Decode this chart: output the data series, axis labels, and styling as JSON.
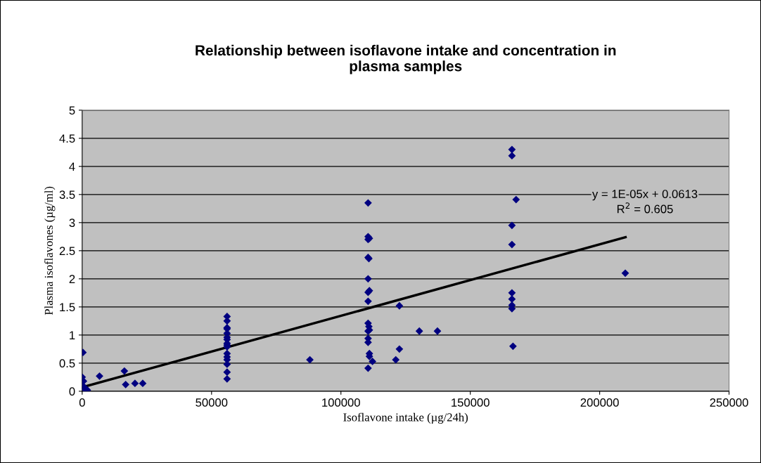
{
  "chart_data": {
    "type": "scatter",
    "title": "Relationship between isoflavone intake and concentration in\nplasma samples",
    "xlabel": "Isoflavone intake (µg/24h)",
    "ylabel": "Plasma isoflavones (µg/ml)",
    "xlim": [
      0,
      250000
    ],
    "xticks": [
      0,
      50000,
      100000,
      150000,
      200000,
      250000
    ],
    "ylim": [
      0,
      5
    ],
    "yticks": [
      0,
      0.5,
      1,
      1.5,
      2,
      2.5,
      3,
      3.5,
      4,
      4.5,
      5
    ],
    "grid": "y",
    "marker": "diamond",
    "legend": false,
    "series": [
      {
        "color": "#000080",
        "x": [
          300,
          0,
          500,
          1000,
          1500,
          2000,
          200,
          800,
          6700,
          16300,
          16800,
          20400,
          23400,
          56000,
          56000,
          56000,
          56000,
          56000,
          56000,
          56000,
          56000,
          56000,
          56000,
          56000,
          56000,
          56000,
          56000,
          56000,
          56000,
          88000,
          110500,
          110500,
          111000,
          110500,
          110500,
          110800,
          110500,
          111000,
          110500,
          110500,
          110500,
          110800,
          111000,
          110500,
          110500,
          110500,
          111000,
          111000,
          110500,
          112200,
          122600,
          130300,
          137300,
          122600,
          121200,
          166100,
          166100,
          167700,
          166100,
          166100,
          166100,
          166100,
          166100,
          166100,
          166500,
          209900
        ],
        "values": [
          0.69,
          0.25,
          0.18,
          0.06,
          0.03,
          0.02,
          0.1,
          0.04,
          0.27,
          0.36,
          0.12,
          0.14,
          0.14,
          1.33,
          1.25,
          1.13,
          1.11,
          1.03,
          0.96,
          0.92,
          0.85,
          0.82,
          0.79,
          0.67,
          0.61,
          0.56,
          0.48,
          0.34,
          0.22,
          0.56,
          3.35,
          2.75,
          2.72,
          2.7,
          2.38,
          2.36,
          2.0,
          1.79,
          1.76,
          1.6,
          1.21,
          1.15,
          1.09,
          1.07,
          0.94,
          0.87,
          0.67,
          0.62,
          0.41,
          0.53,
          1.52,
          1.07,
          1.07,
          0.75,
          0.56,
          4.3,
          4.19,
          3.41,
          2.95,
          2.61,
          1.75,
          1.64,
          1.53,
          1.47,
          0.8,
          2.1
        ]
      },
      {
        "type": "line",
        "color": "#000000",
        "marker": "none",
        "x": [
          0,
          210000
        ],
        "values": [
          0.07,
          2.74
        ]
      }
    ],
    "annotations": [
      "y = 1E-05x + 0.0613\nR$^{2}$ = 0.605"
    ]
  }
}
